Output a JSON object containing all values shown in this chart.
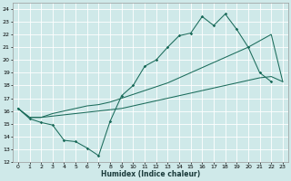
{
  "xlabel": "Humidex (Indice chaleur)",
  "bg_color": "#cfe9e9",
  "grid_color": "#b8d8d8",
  "line_color": "#1a6b5a",
  "xlim": [
    -0.5,
    23.5
  ],
  "ylim": [
    12,
    24.5
  ],
  "yticks": [
    12,
    13,
    14,
    15,
    16,
    17,
    18,
    19,
    20,
    21,
    22,
    23,
    24
  ],
  "xticks": [
    0,
    1,
    2,
    3,
    4,
    5,
    6,
    7,
    8,
    9,
    10,
    11,
    12,
    13,
    14,
    15,
    16,
    17,
    18,
    19,
    20,
    21,
    22,
    23
  ],
  "line1_x": [
    0,
    1,
    2,
    3,
    4,
    5,
    6,
    7,
    8,
    9,
    10,
    11,
    12,
    13,
    14,
    15,
    16,
    17,
    18,
    19,
    20,
    21,
    22
  ],
  "line1_y": [
    16.2,
    15.4,
    15.1,
    14.9,
    13.7,
    13.6,
    13.1,
    12.5,
    15.2,
    17.2,
    18.0,
    19.5,
    20.0,
    21.0,
    21.9,
    22.1,
    23.4,
    22.7,
    23.6,
    22.4,
    21.0,
    19.0,
    18.3
  ],
  "line2_x": [
    0,
    1,
    2,
    3,
    4,
    5,
    6,
    7,
    8,
    9,
    10,
    11,
    12,
    13,
    14,
    15,
    16,
    17,
    18,
    19,
    20,
    21,
    22,
    23
  ],
  "line2_y": [
    16.2,
    15.5,
    15.5,
    15.6,
    15.7,
    15.8,
    15.9,
    16.0,
    16.1,
    16.2,
    16.4,
    16.6,
    16.8,
    17.0,
    17.2,
    17.4,
    17.6,
    17.8,
    18.0,
    18.2,
    18.4,
    18.6,
    18.7,
    18.3
  ],
  "line3_x": [
    0,
    1,
    2,
    3,
    4,
    5,
    6,
    7,
    8,
    9,
    10,
    11,
    12,
    13,
    14,
    15,
    16,
    17,
    18,
    19,
    20,
    21,
    22,
    23
  ],
  "line3_y": [
    16.2,
    15.5,
    15.5,
    15.8,
    16.0,
    16.2,
    16.4,
    16.5,
    16.7,
    17.0,
    17.3,
    17.6,
    17.9,
    18.2,
    18.6,
    19.0,
    19.4,
    19.8,
    20.2,
    20.6,
    21.0,
    21.5,
    22.0,
    18.3
  ]
}
